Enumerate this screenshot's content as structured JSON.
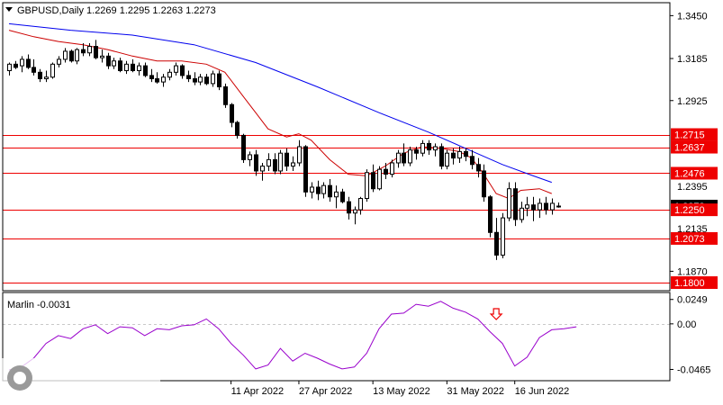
{
  "header": {
    "symbol_line": "GBPUSD,Daily  1.2269 1.2295 1.2263 1.2273"
  },
  "colors": {
    "bull": "#ffffff",
    "bear": "#000000",
    "candle_outline": "#000000",
    "ma_fast": "#cc0000",
    "ma_slow": "#0000ee",
    "level_line": "#ee0000",
    "level_label_bg": "#ee0000",
    "level_label_text": "#ffffff",
    "price_label_bg": "#000000",
    "oscillator": "#9900cc",
    "arrow": "#ee0000",
    "grid": "#c8c8c8"
  },
  "chart_data": [
    {
      "type": "candlestick",
      "name": "GBPUSD,Daily",
      "ohlc_header": {
        "open": 1.2269,
        "high": 1.2295,
        "low": 1.2263,
        "close": 1.2273
      },
      "ylim": [
        1.175,
        1.353
      ],
      "y_ticks": [
        {
          "value": 1.345,
          "label": "1.3450"
        },
        {
          "value": 1.3185,
          "label": "1.3185"
        },
        {
          "value": 1.2925,
          "label": "1.2925"
        },
        {
          "value": 1.187,
          "label": "1.1870"
        }
      ],
      "levels": [
        {
          "value": 1.2715,
          "label": "1.2715"
        },
        {
          "value": 1.2637,
          "label": "1.2637"
        },
        {
          "value": 1.2476,
          "label": "1.2476"
        },
        {
          "value": 1.225,
          "label": "1.2250"
        },
        {
          "value": 1.2073,
          "label": "1.2073"
        },
        {
          "value": 1.18,
          "label": "1.1800"
        }
      ],
      "overlaid_labels": [
        {
          "value": 1.2395,
          "label": "1.2395"
        },
        {
          "value": 1.2273,
          "label": "1.2273"
        },
        {
          "value": 1.2135,
          "label": "1.2135"
        }
      ],
      "x_labels": [
        {
          "index": 36,
          "label": "11 Apr 2022"
        },
        {
          "index": 47,
          "label": "27 Apr 2022"
        },
        {
          "index": 59,
          "label": "13 May 2022"
        },
        {
          "index": 71,
          "label": "31 May 2022"
        },
        {
          "index": 82,
          "label": "16 Jun 2022"
        }
      ],
      "candles": [
        [
          1.311,
          1.316,
          1.308,
          1.315
        ],
        [
          1.315,
          1.317,
          1.312,
          1.313
        ],
        [
          1.314,
          1.32,
          1.31,
          1.318
        ],
        [
          1.318,
          1.321,
          1.312,
          1.313
        ],
        [
          1.313,
          1.318,
          1.308,
          1.31
        ],
        [
          1.31,
          1.312,
          1.304,
          1.306
        ],
        [
          1.306,
          1.311,
          1.304,
          1.307
        ],
        [
          1.307,
          1.316,
          1.306,
          1.315
        ],
        [
          1.315,
          1.32,
          1.313,
          1.318
        ],
        [
          1.318,
          1.325,
          1.316,
          1.323
        ],
        [
          1.323,
          1.324,
          1.316,
          1.317
        ],
        [
          1.317,
          1.325,
          1.315,
          1.324
        ],
        [
          1.324,
          1.328,
          1.32,
          1.322
        ],
        [
          1.322,
          1.328,
          1.32,
          1.326
        ],
        [
          1.326,
          1.33,
          1.318,
          1.319
        ],
        [
          1.319,
          1.324,
          1.316,
          1.32
        ],
        [
          1.32,
          1.322,
          1.312,
          1.314
        ],
        [
          1.314,
          1.319,
          1.312,
          1.317
        ],
        [
          1.317,
          1.319,
          1.31,
          1.311
        ],
        [
          1.311,
          1.317,
          1.309,
          1.315
        ],
        [
          1.315,
          1.318,
          1.31,
          1.311
        ],
        [
          1.311,
          1.316,
          1.308,
          1.314
        ],
        [
          1.314,
          1.316,
          1.307,
          1.308
        ],
        [
          1.308,
          1.312,
          1.304,
          1.306
        ],
        [
          1.306,
          1.31,
          1.303,
          1.304
        ],
        [
          1.304,
          1.309,
          1.301,
          1.307
        ],
        [
          1.307,
          1.312,
          1.305,
          1.31
        ],
        [
          1.31,
          1.316,
          1.308,
          1.314
        ],
        [
          1.314,
          1.315,
          1.306,
          1.308
        ],
        [
          1.308,
          1.311,
          1.304,
          1.306
        ],
        [
          1.306,
          1.31,
          1.302,
          1.304
        ],
        [
          1.304,
          1.309,
          1.302,
          1.307
        ],
        [
          1.307,
          1.309,
          1.302,
          1.303
        ],
        [
          1.303,
          1.311,
          1.301,
          1.309
        ],
        [
          1.309,
          1.311,
          1.299,
          1.301
        ],
        [
          1.301,
          1.303,
          1.288,
          1.29
        ],
        [
          1.29,
          1.291,
          1.276,
          1.279
        ],
        [
          1.279,
          1.28,
          1.269,
          1.271
        ],
        [
          1.271,
          1.272,
          1.254,
          1.256
        ],
        [
          1.256,
          1.261,
          1.252,
          1.259
        ],
        [
          1.259,
          1.262,
          1.246,
          1.249
        ],
        [
          1.249,
          1.254,
          1.243,
          1.252
        ],
        [
          1.252,
          1.26,
          1.249,
          1.256
        ],
        [
          1.256,
          1.26,
          1.247,
          1.249
        ],
        [
          1.249,
          1.262,
          1.247,
          1.26
        ],
        [
          1.26,
          1.263,
          1.249,
          1.252
        ],
        [
          1.252,
          1.258,
          1.249,
          1.254
        ],
        [
          1.254,
          1.268,
          1.252,
          1.264
        ],
        [
          1.264,
          1.265,
          1.233,
          1.236
        ],
        [
          1.236,
          1.242,
          1.232,
          1.239
        ],
        [
          1.239,
          1.243,
          1.231,
          1.235
        ],
        [
          1.235,
          1.242,
          1.232,
          1.24
        ],
        [
          1.24,
          1.244,
          1.23,
          1.233
        ],
        [
          1.233,
          1.24,
          1.226,
          1.236
        ],
        [
          1.236,
          1.238,
          1.229,
          1.23
        ],
        [
          1.23,
          1.233,
          1.219,
          1.223
        ],
        [
          1.223,
          1.227,
          1.216,
          1.225
        ],
        [
          1.225,
          1.233,
          1.222,
          1.232
        ],
        [
          1.232,
          1.25,
          1.23,
          1.248
        ],
        [
          1.248,
          1.253,
          1.236,
          1.238
        ],
        [
          1.238,
          1.252,
          1.237,
          1.25
        ],
        [
          1.25,
          1.254,
          1.244,
          1.247
        ],
        [
          1.247,
          1.256,
          1.245,
          1.254
        ],
        [
          1.254,
          1.262,
          1.251,
          1.26
        ],
        [
          1.26,
          1.266,
          1.252,
          1.254
        ],
        [
          1.254,
          1.264,
          1.252,
          1.262
        ],
        [
          1.262,
          1.264,
          1.256,
          1.26
        ],
        [
          1.26,
          1.268,
          1.258,
          1.266
        ],
        [
          1.266,
          1.268,
          1.259,
          1.262
        ],
        [
          1.262,
          1.266,
          1.258,
          1.264
        ],
        [
          1.264,
          1.266,
          1.25,
          1.252
        ],
        [
          1.252,
          1.262,
          1.25,
          1.26
        ],
        [
          1.26,
          1.263,
          1.253,
          1.257
        ],
        [
          1.257,
          1.264,
          1.254,
          1.261
        ],
        [
          1.261,
          1.263,
          1.255,
          1.258
        ],
        [
          1.258,
          1.262,
          1.25,
          1.253
        ],
        [
          1.253,
          1.257,
          1.245,
          1.249
        ],
        [
          1.249,
          1.253,
          1.23,
          1.233
        ],
        [
          1.233,
          1.234,
          1.208,
          1.211
        ],
        [
          1.211,
          1.22,
          1.194,
          1.197
        ],
        [
          1.197,
          1.223,
          1.195,
          1.22
        ],
        [
          1.22,
          1.242,
          1.218,
          1.238
        ],
        [
          1.238,
          1.242,
          1.215,
          1.219
        ],
        [
          1.219,
          1.23,
          1.217,
          1.226
        ],
        [
          1.226,
          1.233,
          1.221,
          1.228
        ],
        [
          1.228,
          1.233,
          1.218,
          1.225
        ],
        [
          1.225,
          1.232,
          1.22,
          1.229
        ],
        [
          1.229,
          1.233,
          1.222,
          1.225
        ],
        [
          1.225,
          1.232,
          1.222,
          1.229
        ],
        [
          1.2269,
          1.2295,
          1.2263,
          1.2273
        ]
      ],
      "ma_fast": [
        [
          0,
          1.336
        ],
        [
          4,
          1.332
        ],
        [
          8,
          1.329
        ],
        [
          12,
          1.327
        ],
        [
          16,
          1.324
        ],
        [
          20,
          1.32
        ],
        [
          24,
          1.317
        ],
        [
          28,
          1.317
        ],
        [
          32,
          1.315
        ],
        [
          35,
          1.31
        ],
        [
          38,
          1.295
        ],
        [
          40,
          1.285
        ],
        [
          42,
          1.275
        ],
        [
          45,
          1.27
        ],
        [
          47,
          1.272
        ],
        [
          49,
          1.268
        ],
        [
          52,
          1.256
        ],
        [
          55,
          1.247
        ],
        [
          58,
          1.246
        ],
        [
          61,
          1.252
        ],
        [
          64,
          1.26
        ],
        [
          67,
          1.264
        ],
        [
          70,
          1.263
        ],
        [
          73,
          1.261
        ],
        [
          75,
          1.257
        ],
        [
          77,
          1.247
        ],
        [
          79,
          1.235
        ],
        [
          81,
          1.232
        ],
        [
          83,
          1.237
        ],
        [
          86,
          1.238
        ],
        [
          88,
          1.235
        ]
      ],
      "ma_slow": [
        [
          0,
          1.34
        ],
        [
          10,
          1.336
        ],
        [
          20,
          1.333
        ],
        [
          30,
          1.327
        ],
        [
          40,
          1.316
        ],
        [
          50,
          1.301
        ],
        [
          60,
          1.285
        ],
        [
          68,
          1.273
        ],
        [
          74,
          1.263
        ],
        [
          80,
          1.253
        ],
        [
          85,
          1.246
        ],
        [
          88,
          1.242
        ]
      ]
    },
    {
      "type": "line",
      "name": "Marlin",
      "label": "Marlin -0.0031",
      "ylim": [
        -0.058,
        0.032
      ],
      "y_ticks": [
        {
          "value": 0.0249,
          "label": "0.0249"
        },
        {
          "value": 0.0,
          "label": "0.00"
        },
        {
          "value": -0.0465,
          "label": "-0.0465"
        }
      ],
      "arrow_index": 79,
      "values": [
        [
          0,
          -0.047
        ],
        [
          2,
          -0.044
        ],
        [
          4,
          -0.035
        ],
        [
          6,
          -0.02
        ],
        [
          8,
          -0.012
        ],
        [
          10,
          -0.015
        ],
        [
          12,
          -0.005
        ],
        [
          14,
          -0.001
        ],
        [
          16,
          -0.01
        ],
        [
          18,
          -0.003
        ],
        [
          20,
          -0.004
        ],
        [
          22,
          -0.012
        ],
        [
          24,
          -0.005
        ],
        [
          26,
          -0.006
        ],
        [
          28,
          -0.002
        ],
        [
          30,
          -0.001
        ],
        [
          32,
          0.005
        ],
        [
          34,
          -0.005
        ],
        [
          36,
          -0.02
        ],
        [
          38,
          -0.032
        ],
        [
          40,
          -0.046
        ],
        [
          42,
          -0.042
        ],
        [
          44,
          -0.025
        ],
        [
          46,
          -0.038
        ],
        [
          48,
          -0.03
        ],
        [
          50,
          -0.035
        ],
        [
          52,
          -0.041
        ],
        [
          54,
          -0.046
        ],
        [
          56,
          -0.044
        ],
        [
          58,
          -0.03
        ],
        [
          60,
          -0.005
        ],
        [
          62,
          0.01
        ],
        [
          64,
          0.011
        ],
        [
          66,
          0.02
        ],
        [
          68,
          0.018
        ],
        [
          70,
          0.023
        ],
        [
          72,
          0.016
        ],
        [
          74,
          0.012
        ],
        [
          76,
          0.005
        ],
        [
          78,
          -0.008
        ],
        [
          80,
          -0.02
        ],
        [
          82,
          -0.043
        ],
        [
          84,
          -0.034
        ],
        [
          86,
          -0.014
        ],
        [
          88,
          -0.006
        ],
        [
          90,
          -0.005
        ],
        [
          92,
          -0.003
        ]
      ]
    }
  ]
}
